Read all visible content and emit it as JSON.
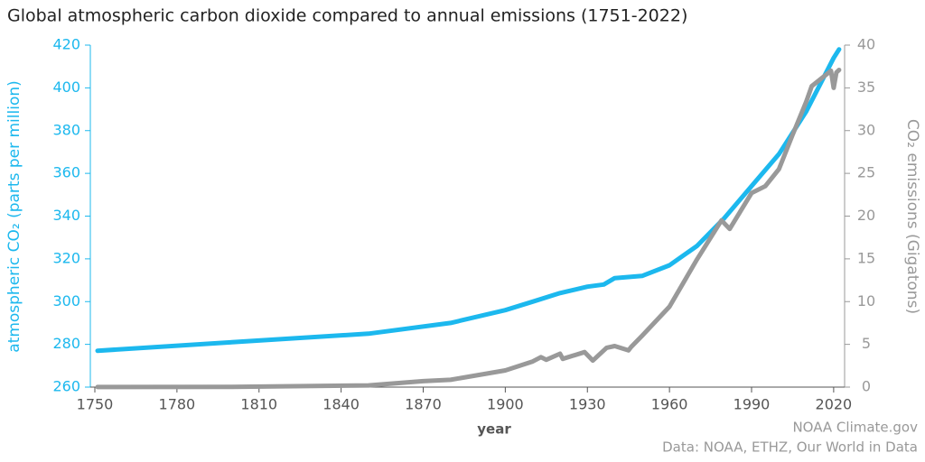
{
  "chart_data": {
    "type": "line",
    "title": "Global atmospheric carbon dioxide compared to annual emissions (1751-2022)",
    "xlabel": "year",
    "ylabel": "atmospheric CO₂ (parts per million)",
    "y2label": "CO₂ emissions (Gigatons)",
    "credits": [
      "NOAA Climate.gov",
      "Data: NOAA, ETHZ, Our World in Data"
    ],
    "xlim": [
      1750,
      2024
    ],
    "xticks": [
      1750,
      1780,
      1810,
      1840,
      1870,
      1900,
      1930,
      1960,
      1990,
      2020
    ],
    "ylim": [
      260,
      420
    ],
    "yticks": [
      260,
      280,
      300,
      320,
      340,
      360,
      380,
      400,
      420
    ],
    "y2lim": [
      0,
      40
    ],
    "y2ticks": [
      0,
      5,
      10,
      15,
      20,
      25,
      30,
      35,
      40
    ],
    "series": [
      {
        "name": "atmospheric CO₂",
        "color": "#1cb8ee",
        "x": [
          1751,
          1800,
          1850,
          1880,
          1900,
          1910,
          1920,
          1930,
          1936,
          1940,
          1950,
          1960,
          1970,
          1980,
          1990,
          2000,
          2010,
          2020,
          2022
        ],
        "values": [
          277,
          281,
          285,
          290,
          296,
          300,
          304,
          307,
          308,
          311,
          312,
          317,
          326,
          339,
          354,
          369,
          389,
          414,
          418
        ]
      },
      {
        "name": "CO₂ emissions",
        "color": "#999999",
        "axis": "y2",
        "x": [
          1751,
          1800,
          1850,
          1870,
          1880,
          1900,
          1910,
          1913,
          1915,
          1920,
          1921,
          1929,
          1932,
          1937,
          1940,
          1945,
          1946,
          1950,
          1960,
          1970,
          1979,
          1982,
          1990,
          1995,
          2000,
          2005,
          2010,
          2012,
          2019,
          2020,
          2021,
          2022
        ],
        "values": [
          0.01,
          0.03,
          0.2,
          0.7,
          0.85,
          1.95,
          3.0,
          3.5,
          3.2,
          3.9,
          3.3,
          4.1,
          3.1,
          4.6,
          4.8,
          4.3,
          4.7,
          6.0,
          9.4,
          14.9,
          19.5,
          18.5,
          22.7,
          23.5,
          25.5,
          29.5,
          33.4,
          35.2,
          37.0,
          35.0,
          36.8,
          37.1
        ]
      }
    ]
  }
}
